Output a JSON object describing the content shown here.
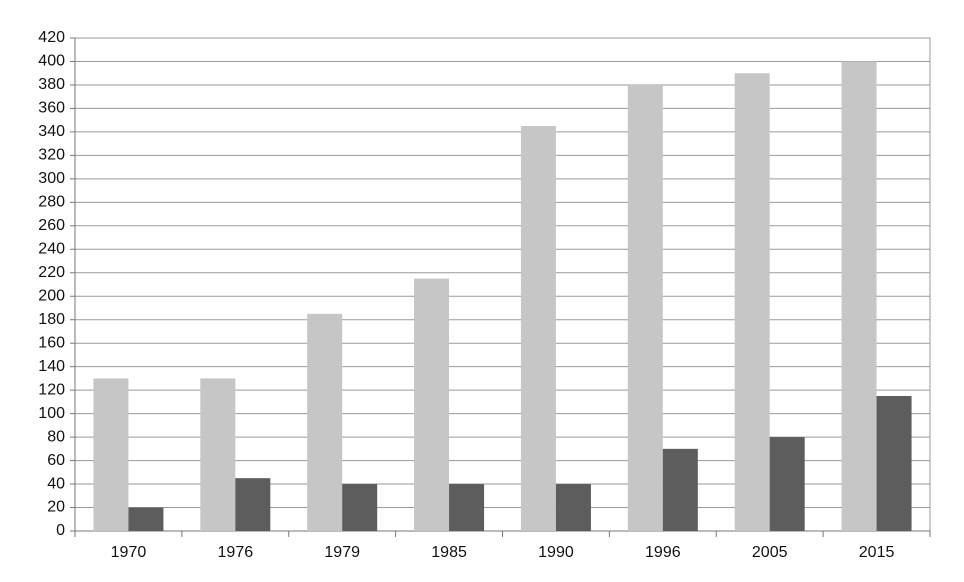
{
  "chart_data": {
    "type": "bar",
    "categories": [
      "1970",
      "1976",
      "1979",
      "1985",
      "1990",
      "1996",
      "2005",
      "2015"
    ],
    "series": [
      {
        "color": "#c6c6c6",
        "values": [
          130,
          130,
          185,
          215,
          345,
          380,
          390,
          400
        ]
      },
      {
        "color": "#5d5d5d",
        "values": [
          20,
          45,
          40,
          40,
          40,
          70,
          80,
          115
        ]
      }
    ],
    "ylim": [
      0,
      420
    ],
    "yticks": [
      0,
      20,
      40,
      60,
      80,
      100,
      120,
      140,
      160,
      180,
      200,
      220,
      240,
      260,
      280,
      300,
      320,
      340,
      360,
      380,
      400,
      420
    ],
    "grid": true
  }
}
